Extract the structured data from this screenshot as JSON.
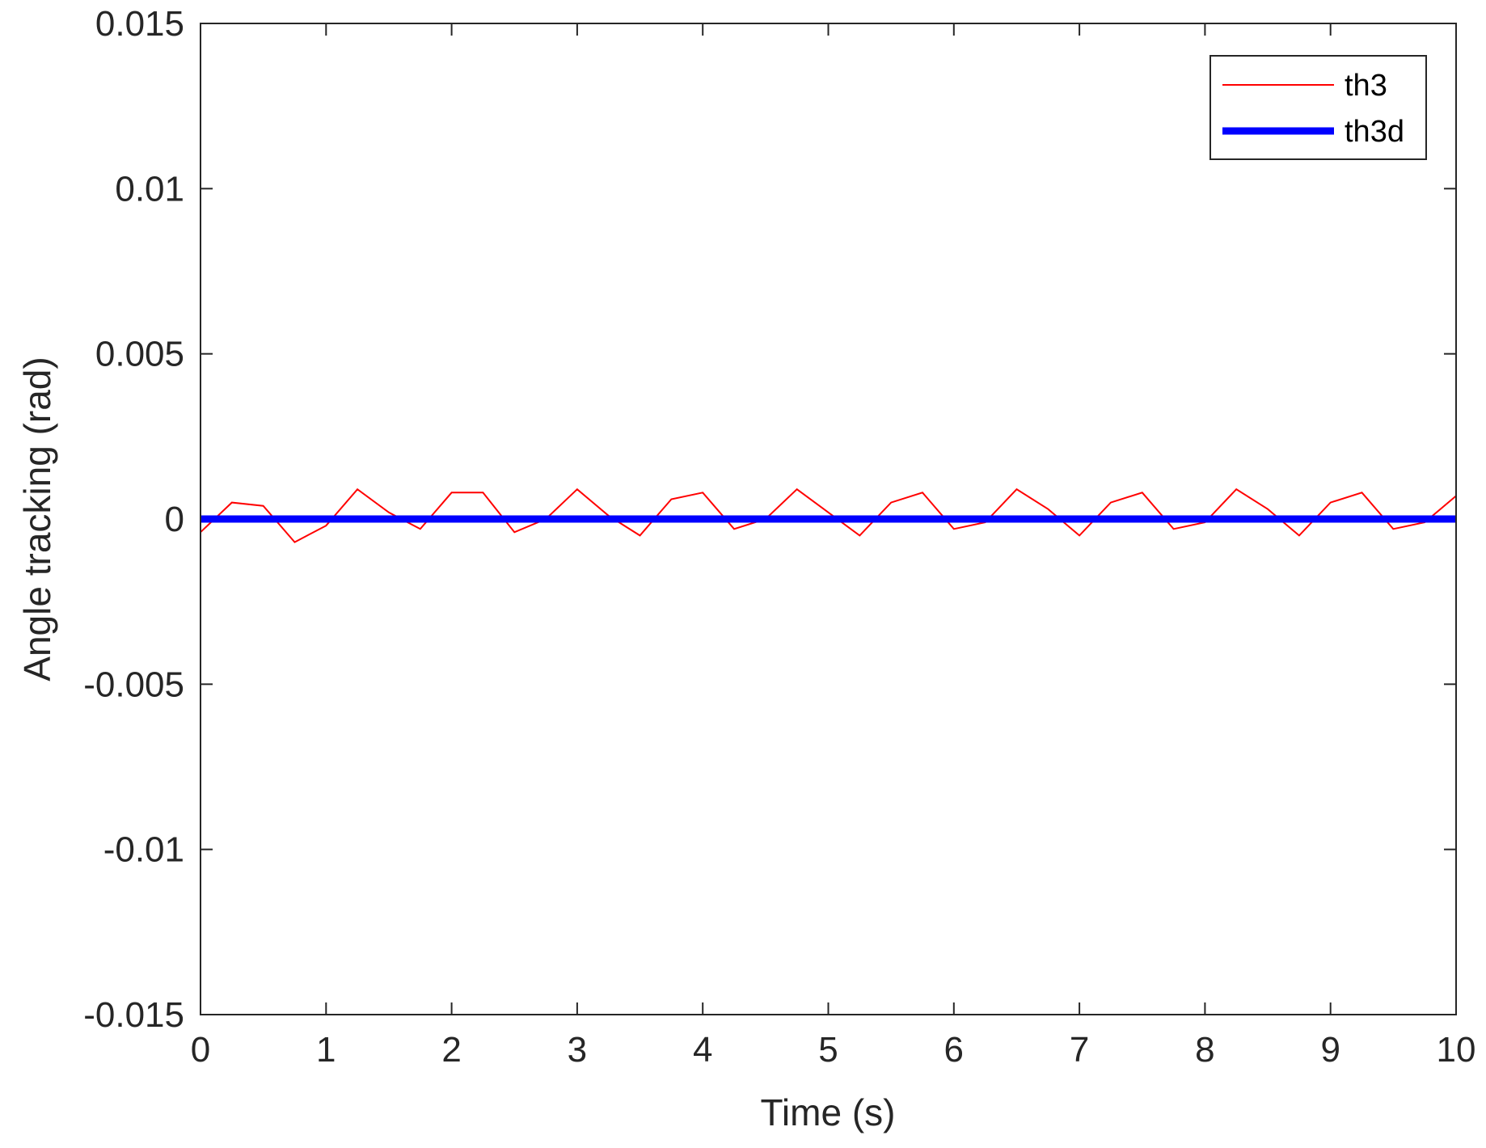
{
  "chart_data": {
    "type": "line",
    "title": "",
    "xlabel": "Time (s)",
    "ylabel": "Angle tracking (rad)",
    "xlim": [
      0,
      10
    ],
    "ylim": [
      -0.015,
      0.015
    ],
    "xticks": [
      0,
      1,
      2,
      3,
      4,
      5,
      6,
      7,
      8,
      9,
      10
    ],
    "xtick_labels": [
      "0",
      "1",
      "2",
      "3",
      "4",
      "5",
      "6",
      "7",
      "8",
      "9",
      "10"
    ],
    "yticks": [
      0.015,
      0.01,
      0.005,
      0,
      -0.005,
      -0.01,
      -0.015
    ],
    "ytick_labels": [
      "0.015",
      "0.01",
      "0.005",
      "0",
      "-0.005",
      "-0.01",
      "-0.015"
    ],
    "grid": false,
    "legend_position": "top-right",
    "series": [
      {
        "name": "th3",
        "color": "#ff0000",
        "x": [
          0,
          0.25,
          0.5,
          0.75,
          1.0,
          1.25,
          1.5,
          1.75,
          2.0,
          2.25,
          2.5,
          2.75,
          3.0,
          3.25,
          3.5,
          3.75,
          4.0,
          4.25,
          4.5,
          4.75,
          5.0,
          5.25,
          5.5,
          5.75,
          6.0,
          6.25,
          6.5,
          6.75,
          7.0,
          7.25,
          7.5,
          7.75,
          8.0,
          8.25,
          8.5,
          8.75,
          9.0,
          9.25,
          9.5,
          9.75,
          10.0
        ],
        "y": [
          -0.0004,
          0.0005,
          0.0004,
          -0.0007,
          -0.0002,
          0.0009,
          0.0002,
          -0.0003,
          0.0008,
          0.0008,
          -0.0004,
          0.0,
          0.0009,
          0.0001,
          -0.0005,
          0.0006,
          0.0008,
          -0.0003,
          0.0,
          0.0009,
          0.0002,
          -0.0005,
          0.0005,
          0.0008,
          -0.0003,
          -0.0001,
          0.0009,
          0.0003,
          -0.0005,
          0.0005,
          0.0008,
          -0.0003,
          -0.0001,
          0.0009,
          0.0003,
          -0.0005,
          0.0005,
          0.0008,
          -0.0003,
          -0.0001,
          0.0007
        ]
      },
      {
        "name": "th3d",
        "color": "#0000ff",
        "x": [
          0,
          10
        ],
        "y": [
          0,
          0
        ]
      }
    ]
  }
}
